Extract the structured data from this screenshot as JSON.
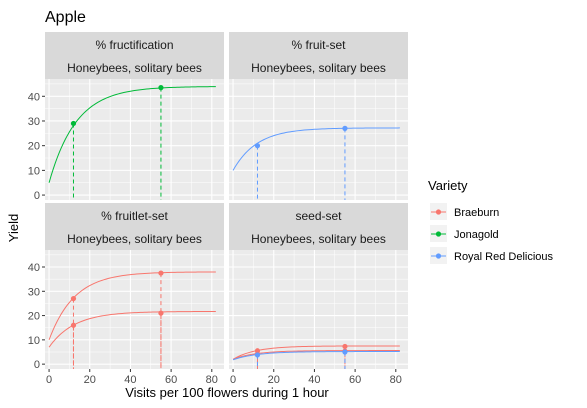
{
  "chart_data": {
    "type": "line",
    "title": "Apple",
    "xlabel": "Visits per 100 flowers during 1 hour",
    "ylabel": "Yield",
    "xlim": [
      -2,
      86
    ],
    "ylim": [
      -2,
      47
    ],
    "x_ticks": [
      0,
      20,
      40,
      60,
      80
    ],
    "y_ticks": [
      0,
      10,
      20,
      30,
      40
    ],
    "grid": true,
    "legend_position": "right",
    "legend_title": "Variety",
    "legend": [
      {
        "name": "Braeburn",
        "color": "#F8766D"
      },
      {
        "name": "Jonagold",
        "color": "#00BA38"
      },
      {
        "name": "Royal Red Delicious",
        "color": "#619CFF"
      }
    ],
    "panels": [
      {
        "id": "fructification",
        "strip_title": "% fructification",
        "strip_subtitle": "Honeybees, solitary bees",
        "position": "top-left",
        "series": [
          {
            "variety": "Jonagold",
            "color": "#00BA38",
            "x_start": 0,
            "x_end": 82,
            "y0": 5,
            "ymax": 44,
            "k": 0.075,
            "points": [
              {
                "x": 12,
                "y": 29
              },
              {
                "x": 55,
                "y": 43.5
              }
            ]
          }
        ]
      },
      {
        "id": "fruit-set",
        "strip_title": "% fruit-set",
        "strip_subtitle": "Honeybees, solitary bees",
        "position": "top-right",
        "series": [
          {
            "variety": "Royal Red Delicious",
            "color": "#619CFF",
            "x_start": 0,
            "x_end": 82,
            "y0": 10,
            "ymax": 27.2,
            "k": 0.085,
            "points": [
              {
                "x": 12,
                "y": 20
              },
              {
                "x": 55,
                "y": 27
              }
            ]
          }
        ]
      },
      {
        "id": "fruitlet-set",
        "strip_title": "% fruitlet-set",
        "strip_subtitle": "Honeybees, solitary bees",
        "position": "bottom-left",
        "series": [
          {
            "variety": "Braeburn",
            "color": "#F8766D",
            "x_start": 0,
            "x_end": 82,
            "y0": 10,
            "ymax": 38,
            "k": 0.08,
            "points": [
              {
                "x": 12,
                "y": 27
              },
              {
                "x": 55,
                "y": 37.5
              }
            ]
          },
          {
            "variety": "Braeburn",
            "color": "#F8766D",
            "x_start": 0,
            "x_end": 82,
            "y0": 7,
            "ymax": 21.7,
            "k": 0.08,
            "points": [
              {
                "x": 12,
                "y": 16
              },
              {
                "x": 55,
                "y": 21
              }
            ]
          }
        ]
      },
      {
        "id": "seed-set",
        "strip_title": "seed-set",
        "strip_subtitle": "Honeybees, solitary bees",
        "position": "bottom-right",
        "series": [
          {
            "variety": "Braeburn",
            "color": "#F8766D",
            "x_start": 0,
            "x_end": 82,
            "y0": 2,
            "ymax": 7.5,
            "k": 0.09,
            "points": [
              {
                "x": 12,
                "y": 5.5
              },
              {
                "x": 55,
                "y": 7.3
              }
            ]
          },
          {
            "variety": "Braeburn",
            "color": "#F8766D",
            "x_start": 0,
            "x_end": 82,
            "y0": 2,
            "ymax": 5.6,
            "k": 0.09,
            "points": [
              {
                "x": 12,
                "y": 4.2
              },
              {
                "x": 55,
                "y": 5.3
              }
            ]
          },
          {
            "variety": "Royal Red Delicious",
            "color": "#619CFF",
            "x_start": 0,
            "x_end": 82,
            "y0": 1.8,
            "ymax": 5.2,
            "k": 0.085,
            "points": [
              {
                "x": 12,
                "y": 3.8
              },
              {
                "x": 55,
                "y": 5
              }
            ]
          }
        ]
      }
    ]
  }
}
